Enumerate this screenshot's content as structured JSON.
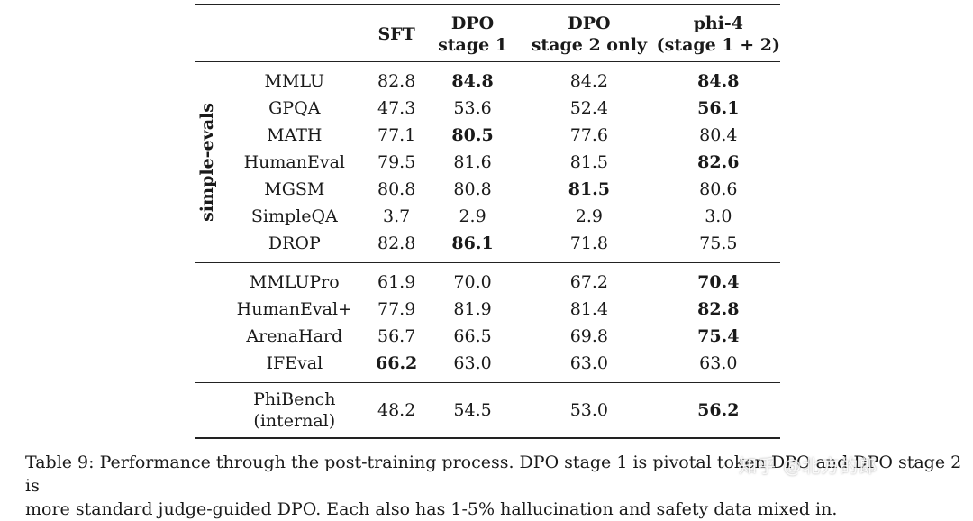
{
  "table": {
    "headers": {
      "sft": "SFT",
      "dpo1_line1": "DPO",
      "dpo1_line2": "stage 1",
      "dpo2_line1": "DPO",
      "dpo2_line2": "stage 2 only",
      "phi4_line1": "phi-4",
      "phi4_line2": "(stage 1 + 2)"
    },
    "group_label": "simple-evals",
    "group1": [
      {
        "name": "MMLU",
        "sft": "82.8",
        "dpo1": "84.8",
        "dpo2": "84.2",
        "phi4": "84.8"
      },
      {
        "name": "GPQA",
        "sft": "47.3",
        "dpo1": "53.6",
        "dpo2": "52.4",
        "phi4": "56.1"
      },
      {
        "name": "MATH",
        "sft": "77.1",
        "dpo1": "80.5",
        "dpo2": "77.6",
        "phi4": "80.4"
      },
      {
        "name": "HumanEval",
        "sft": "79.5",
        "dpo1": "81.6",
        "dpo2": "81.5",
        "phi4": "82.6"
      },
      {
        "name": "MGSM",
        "sft": "80.8",
        "dpo1": "80.8",
        "dpo2": "81.5",
        "phi4": "80.6"
      },
      {
        "name": "SimpleQA",
        "sft": "3.7",
        "dpo1": "2.9",
        "dpo2": "2.9",
        "phi4": "3.0"
      },
      {
        "name": "DROP",
        "sft": "82.8",
        "dpo1": "86.1",
        "dpo2": "71.8",
        "phi4": "75.5"
      }
    ],
    "group2": [
      {
        "name": "MMLUPro",
        "sft": "61.9",
        "dpo1": "70.0",
        "dpo2": "67.2",
        "phi4": "70.4"
      },
      {
        "name": "HumanEval+",
        "sft": "77.9",
        "dpo1": "81.9",
        "dpo2": "81.4",
        "phi4": "82.8"
      },
      {
        "name": "ArenaHard",
        "sft": "56.7",
        "dpo1": "66.5",
        "dpo2": "69.8",
        "phi4": "75.4"
      },
      {
        "name": "IFEval",
        "sft": "66.2",
        "dpo1": "63.0",
        "dpo2": "63.0",
        "phi4": "63.0"
      }
    ],
    "group3": [
      {
        "name_line1": "PhiBench",
        "name_line2": "(internal)",
        "sft": "48.2",
        "dpo1": "54.5",
        "dpo2": "53.0",
        "phi4": "56.2"
      }
    ]
  },
  "caption": {
    "line1": "Table 9: Performance through the post-training process. DPO stage 1 is pivotal token DPO and DPO stage 2 is",
    "line2": "more standard judge-guided DPO. Each also has 1-5% hallucination and safety data mixed in."
  },
  "watermark": "知乎 @北方的郎"
}
